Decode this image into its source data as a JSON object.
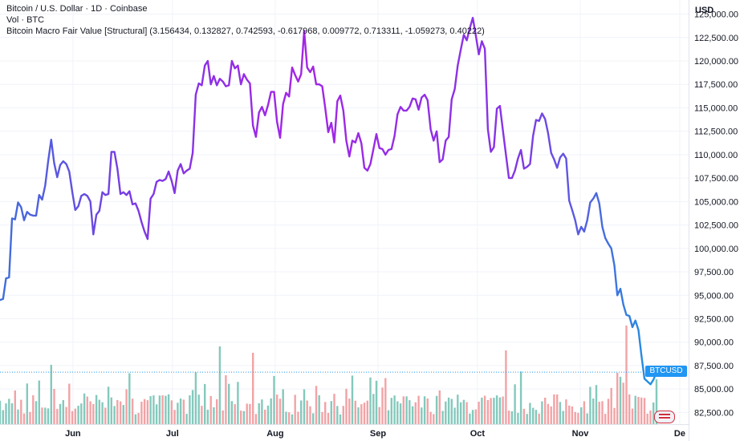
{
  "header": {
    "title": "Bitcoin / U.S. Dollar · 1D · Coinbase",
    "volume_label": "Vol · BTC",
    "indicator_label": "Bitcoin Macro Fair Value [Structural] (3.156434, 0.132827, 0.742593, -0.617968, 0.009772, 0.713311, -1.059273, 0.40222)"
  },
  "axis": {
    "currency": "USD",
    "y_ticks": [
      "125,000.00",
      "122,500.00",
      "120,000.00",
      "117,500.00",
      "115,000.00",
      "112,500.00",
      "110,000.00",
      "107,500.00",
      "105,000.00",
      "102,500.00",
      "100,000.00",
      "97,500.00",
      "95,000.00",
      "92,500.00",
      "90,000.00",
      "87,500.00",
      "85,000.00",
      "82,500.00"
    ],
    "x_ticks": [
      "Jun",
      "Jul",
      "Aug",
      "Sep",
      "Oct",
      "Nov",
      "De"
    ]
  },
  "price_tag": {
    "label": "BTCUSD",
    "color": "#2196f3"
  },
  "colors": {
    "line_start": "#3f6fdb",
    "line_mid": "#9b27e8",
    "line_end": "#1f8fe0",
    "vol_up": "#84c9bc",
    "vol_down": "#f2a3a6",
    "grid": "#f0f3fa"
  },
  "icons": {
    "logo": "tradingview-flag-icon"
  },
  "chart_data": {
    "type": "line",
    "title": "Bitcoin Macro Fair Value [Structural]",
    "y_unit": "USD",
    "ylim": [
      81250,
      126500
    ],
    "x_start": "2025-05-10",
    "x_end": "2025-11-24",
    "last_value": 86800,
    "series": [
      {
        "name": "Bitcoin Macro Fair Value [Structural]",
        "values": [
          94500,
          94600,
          96800,
          96900,
          103200,
          103100,
          104900,
          104400,
          103000,
          103900,
          103600,
          103500,
          103500,
          105700,
          105200,
          106700,
          109300,
          111600,
          109100,
          107600,
          108900,
          109300,
          109000,
          108200,
          106000,
          104100,
          104500,
          105600,
          105800,
          105600,
          105000,
          101500,
          103600,
          104000,
          106000,
          105700,
          105800,
          110300,
          110300,
          108500,
          105800,
          106000,
          105700,
          106100,
          104700,
          104800,
          104000,
          102800,
          101800,
          101000,
          105300,
          105800,
          107100,
          107300,
          107200,
          107400,
          108200,
          107200,
          105900,
          108300,
          109000,
          108000,
          108300,
          108500,
          110200,
          116400,
          117600,
          117400,
          119500,
          120000,
          117500,
          118400,
          117400,
          118100,
          117800,
          117300,
          117400,
          120000,
          119200,
          119500,
          117500,
          118600,
          118000,
          117600,
          113100,
          111900,
          114500,
          115100,
          114200,
          115300,
          116700,
          116700,
          113500,
          111800,
          115400,
          116600,
          116200,
          119300,
          118500,
          117800,
          118600,
          123200,
          119300,
          118800,
          119400,
          117500,
          117500,
          117300,
          115000,
          112400,
          113400,
          111300,
          115700,
          116300,
          114700,
          111500,
          109800,
          111500,
          111300,
          112300,
          111200,
          108600,
          108300,
          109000,
          110600,
          112200,
          110700,
          110600,
          110000,
          110500,
          110600,
          112000,
          114300,
          115100,
          114700,
          114700,
          115100,
          116000,
          115900,
          114800,
          116100,
          116400,
          115800,
          112700,
          111500,
          112500,
          109200,
          109500,
          111500,
          111900,
          115900,
          117000,
          119500,
          121200,
          122800,
          122200,
          123500,
          124600,
          122700,
          120700,
          122100,
          121300,
          112700,
          110300,
          110800,
          114900,
          115200,
          112600,
          110000,
          107500,
          107500,
          108300,
          109600,
          110500,
          108500,
          108700,
          109000,
          112000,
          113700,
          113600,
          114400,
          113800,
          112300,
          110200,
          109500,
          108600,
          109700,
          110100,
          109600,
          105100,
          104100,
          103000,
          101500,
          102300,
          101800,
          103000,
          104900,
          105300,
          105900,
          104800,
          102300,
          101100,
          100500,
          100000,
          98200,
          95000,
          95700,
          94000,
          92900,
          92800,
          91600,
          92300,
          91300,
          88600,
          86100,
          85800,
          85500,
          86000,
          86800
        ]
      }
    ]
  }
}
